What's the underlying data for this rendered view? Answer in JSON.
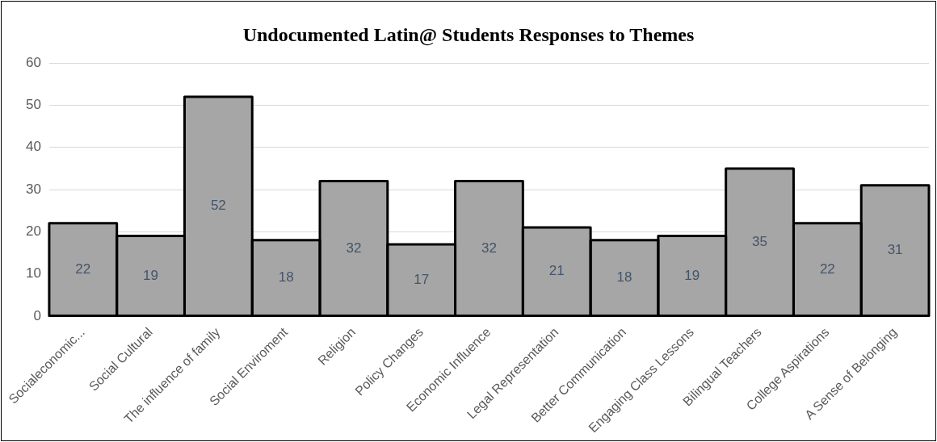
{
  "chart_data": {
    "type": "bar",
    "title": "Undocumented Latin@ Students Responses to Themes",
    "categories": [
      "Socialeconomic...",
      "Social Cultural",
      "The influence of family",
      "Social Enviroment",
      "Religion",
      "Policy Changes",
      "Economic Influence",
      "Legal Representation",
      "Better Communication",
      "Engaging Class Lessons",
      "Bilingual Teachers",
      "College Aspirations",
      "A Sense of Belonging"
    ],
    "values": [
      22,
      19,
      52,
      18,
      32,
      17,
      32,
      21,
      18,
      19,
      35,
      22,
      31
    ],
    "color": "#a6a6a6",
    "ylim": [
      0,
      60
    ],
    "yticks": [
      0,
      10,
      20,
      30,
      40,
      50,
      60
    ],
    "grid": "y",
    "data_labels": true,
    "legend": false
  }
}
